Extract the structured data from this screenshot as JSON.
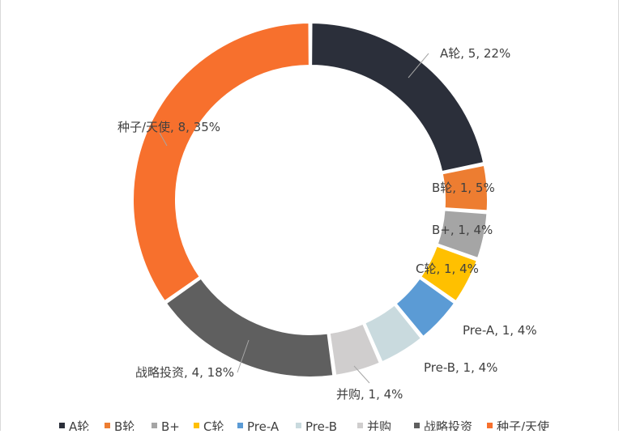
{
  "chart_data": {
    "type": "pie",
    "style": "donut",
    "title": "",
    "slices": [
      {
        "label": "A轮",
        "value": 5,
        "percent": "22%",
        "color": "#2b2f3a"
      },
      {
        "label": "B轮",
        "value": 1,
        "percent": "5%",
        "color": "#ed7d31"
      },
      {
        "label": "B+",
        "value": 1,
        "percent": "4%",
        "color": "#a5a5a5"
      },
      {
        "label": "C轮",
        "value": 1,
        "percent": "4%",
        "color": "#ffc000"
      },
      {
        "label": "Pre-A",
        "value": 1,
        "percent": "4%",
        "color": "#5b9bd5"
      },
      {
        "label": "Pre-B",
        "value": 1,
        "percent": "4%",
        "color": "#c9dade"
      },
      {
        "label": "并购",
        "value": 1,
        "percent": "4%",
        "color": "#d0cece"
      },
      {
        "label": "战略投资",
        "value": 4,
        "percent": "18%",
        "color": "#5f5f5f"
      },
      {
        "label": "种子/天使",
        "value": 8,
        "percent": "35%",
        "color": "#f7702d"
      }
    ],
    "legend_position": "bottom"
  }
}
